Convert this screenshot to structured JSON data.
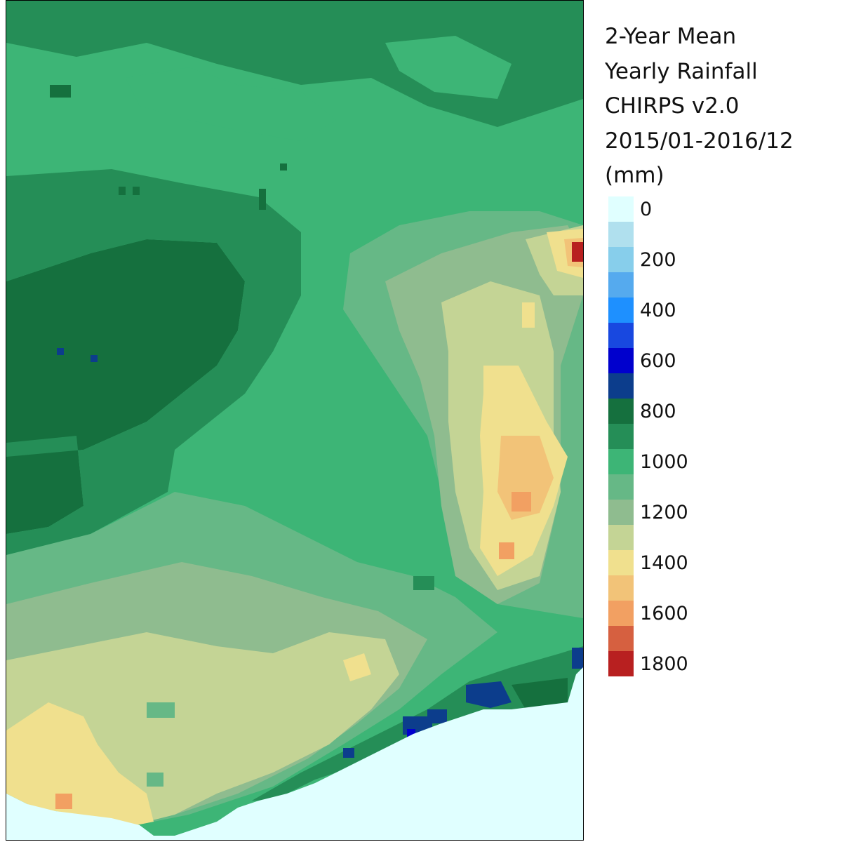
{
  "legend": {
    "title_lines": [
      "2-Year Mean",
      "Yearly Rainfall",
      "CHIRPS v2.0",
      "2015/01-2016/12",
      "(mm)"
    ],
    "unit": "mm",
    "tick_labels": [
      "0",
      "200",
      "400",
      "600",
      "800",
      "1000",
      "1200",
      "1400",
      "1600",
      "1800"
    ],
    "colors": [
      "#e0ffff",
      "#b0e0ee",
      "#87ceeb",
      "#55aaee",
      "#1e90ff",
      "#1848e0",
      "#0000cd",
      "#0c3d8c",
      "#15703e",
      "#258e57",
      "#3db576",
      "#66b886",
      "#8fbc8f",
      "#c4d495",
      "#f0e08e",
      "#f2c378",
      "#f2a062",
      "#d66040",
      "#b82020"
    ]
  },
  "map": {
    "data_description_values": "rainfall field (mm)",
    "ocean_color": "#e0ffff"
  }
}
